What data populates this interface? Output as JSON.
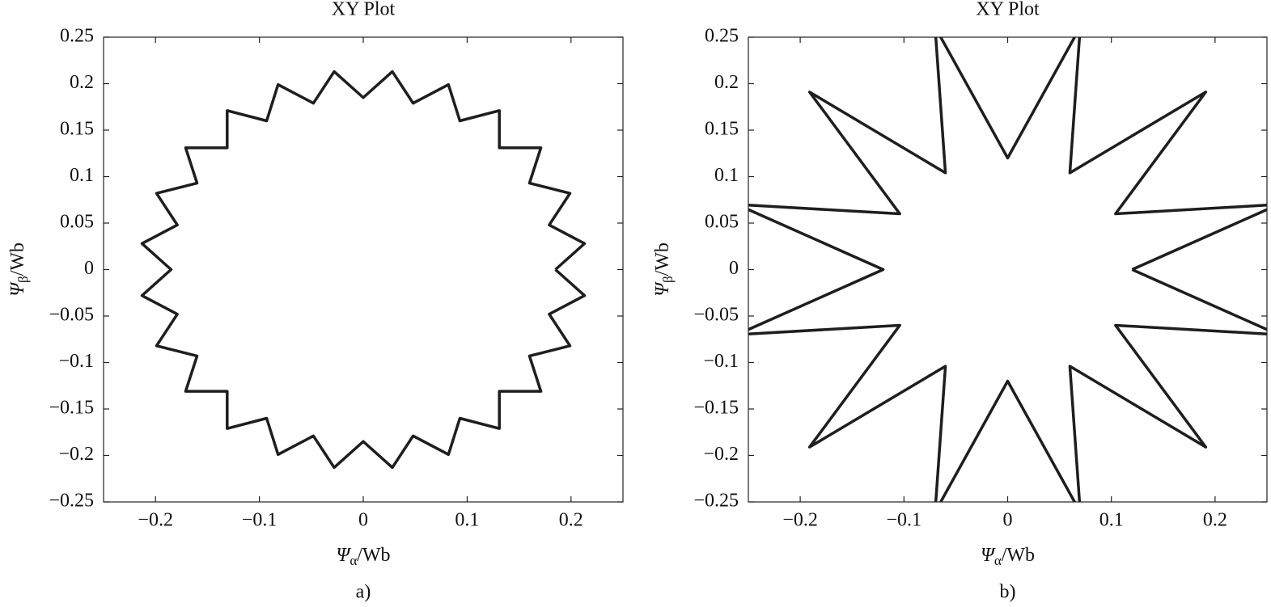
{
  "chart_data": [
    {
      "type": "line",
      "title": "XY Plot",
      "caption": "a)",
      "color": "#1e1e1e",
      "xlabel": {
        "symbol": "Ψ",
        "subscript": "α",
        "unit": "/Wb"
      },
      "ylabel": {
        "symbol": "Ψ",
        "subscript": "β",
        "unit": "/Wb"
      },
      "xlim": [
        -0.25,
        0.25
      ],
      "ylim": [
        -0.25,
        0.25
      ],
      "xticks": [
        {
          "value": -0.2,
          "label": "−0.2"
        },
        {
          "value": -0.1,
          "label": "−0.1"
        },
        0,
        0.1,
        0.2
      ],
      "yticks": [
        {
          "value": -0.25,
          "label": "−0.25"
        },
        {
          "value": -0.2,
          "label": "−0.2"
        },
        {
          "value": -0.15,
          "label": "−0.15"
        },
        {
          "value": -0.1,
          "label": "−0.1"
        },
        {
          "value": -0.05,
          "label": "−0.05"
        },
        0,
        0.05,
        0.1,
        0.15,
        0.2,
        0.25
      ],
      "x": [
        0.185,
        0.213,
        0.179,
        0.199,
        0.16,
        0.171,
        0.131,
        0.131,
        0.093,
        0.082,
        0.048,
        0.028,
        0,
        -0.028,
        -0.048,
        -0.082,
        -0.093,
        -0.131,
        -0.131,
        -0.171,
        -0.16,
        -0.199,
        -0.179,
        -0.213,
        -0.185,
        -0.213,
        -0.179,
        -0.199,
        -0.16,
        -0.171,
        -0.131,
        -0.131,
        -0.093,
        -0.082,
        -0.048,
        -0.028,
        0,
        0.028,
        0.048,
        0.082,
        0.093,
        0.131,
        0.131,
        0.171,
        0.16,
        0.199,
        0.179,
        0.213,
        0.185
      ],
      "values": [
        0,
        0.028,
        0.048,
        0.082,
        0.093,
        0.131,
        0.131,
        0.171,
        0.16,
        0.199,
        0.179,
        0.213,
        0.185,
        0.213,
        0.179,
        0.199,
        0.16,
        0.171,
        0.131,
        0.131,
        0.093,
        0.082,
        0.048,
        0.028,
        0,
        -0.028,
        -0.048,
        -0.082,
        -0.093,
        -0.131,
        -0.131,
        -0.171,
        -0.16,
        -0.199,
        -0.179,
        -0.213,
        -0.185,
        -0.213,
        -0.179,
        -0.199,
        -0.16,
        -0.171,
        -0.131,
        -0.131,
        -0.093,
        -0.082,
        -0.048,
        -0.028,
        0
      ]
    },
    {
      "type": "line",
      "title": "XY Plot",
      "caption": "b)",
      "color": "#1e1e1e",
      "xlabel": {
        "symbol": "Ψ",
        "subscript": "α",
        "unit": "/Wb"
      },
      "ylabel": {
        "symbol": "Ψ",
        "subscript": "β",
        "unit": "/Wb"
      },
      "xlim": [
        -0.25,
        0.25
      ],
      "ylim": [
        -0.25,
        0.25
      ],
      "xticks": [
        {
          "value": -0.2,
          "label": "−0.2"
        },
        {
          "value": -0.1,
          "label": "−0.1"
        },
        0,
        0.1,
        0.2
      ],
      "yticks": [
        {
          "value": -0.25,
          "label": "−0.25"
        },
        {
          "value": -0.2,
          "label": "−0.2"
        },
        {
          "value": -0.15,
          "label": "−0.15"
        },
        {
          "value": -0.1,
          "label": "−0.1"
        },
        {
          "value": -0.05,
          "label": "−0.05"
        },
        0,
        0.05,
        0.1,
        0.15,
        0.2,
        0.25
      ],
      "x": [
        0.12,
        0.261,
        0.104,
        0.191,
        0.06,
        0.07,
        0,
        -0.07,
        -0.06,
        -0.191,
        -0.104,
        -0.261,
        -0.12,
        -0.261,
        -0.104,
        -0.191,
        -0.06,
        -0.07,
        0,
        0.07,
        0.06,
        0.191,
        0.104,
        0.261,
        0.12
      ],
      "values": [
        0,
        0.07,
        0.06,
        0.191,
        0.104,
        0.261,
        0.12,
        0.261,
        0.104,
        0.191,
        0.06,
        0.07,
        0,
        -0.07,
        -0.06,
        -0.191,
        -0.104,
        -0.261,
        -0.12,
        -0.261,
        -0.104,
        -0.191,
        -0.06,
        -0.07,
        0
      ]
    }
  ]
}
